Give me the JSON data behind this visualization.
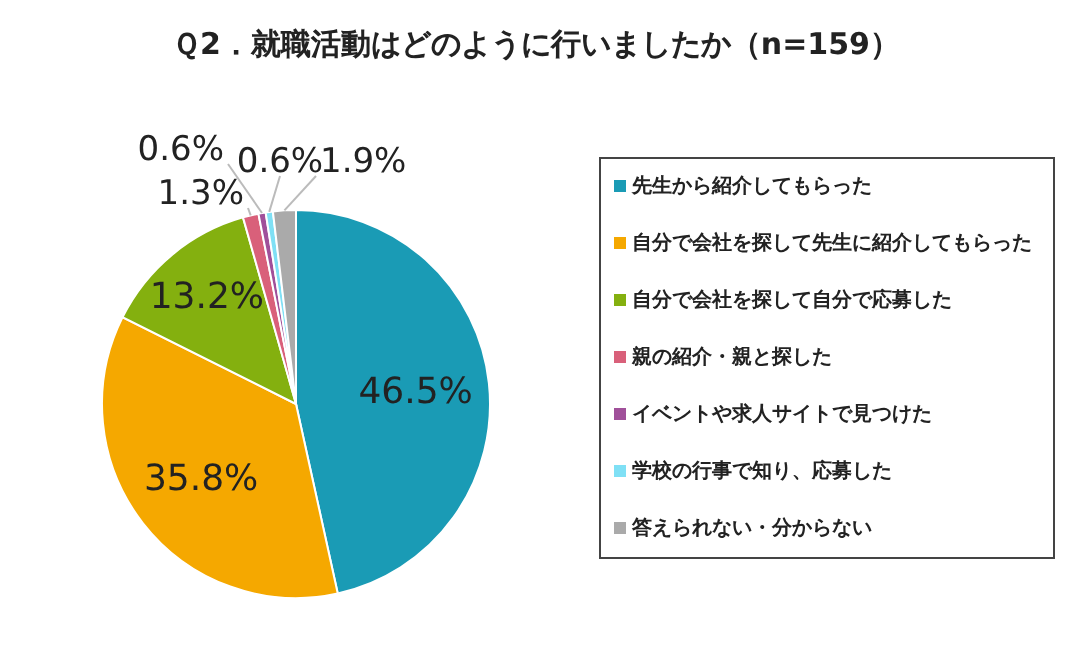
{
  "chart_data": {
    "type": "pie",
    "title": "Ｑ2．就職活動はどのように行いましたか（n=159）",
    "categories": [
      "先生から紹介してもらった",
      "自分で会社を探して先生に紹介してもらった",
      "自分で会社を探して自分で応募した",
      "親の紹介・親と探した",
      "イベントや求人サイトで見つけた",
      "学校の行事で知り、応募した",
      "答えられない・分からない"
    ],
    "values": [
      46.5,
      35.8,
      13.2,
      1.3,
      0.6,
      0.6,
      1.9
    ],
    "colors": [
      "#1a9bb5",
      "#f5a800",
      "#84b00f",
      "#d9607a",
      "#a0509a",
      "#7fe0f5",
      "#aaaaaa"
    ],
    "value_labels": [
      "46.5%",
      "35.8%",
      "13.2%",
      "1.3%",
      "0.6%",
      "0.6%",
      "1.9%"
    ],
    "legend": "right"
  }
}
